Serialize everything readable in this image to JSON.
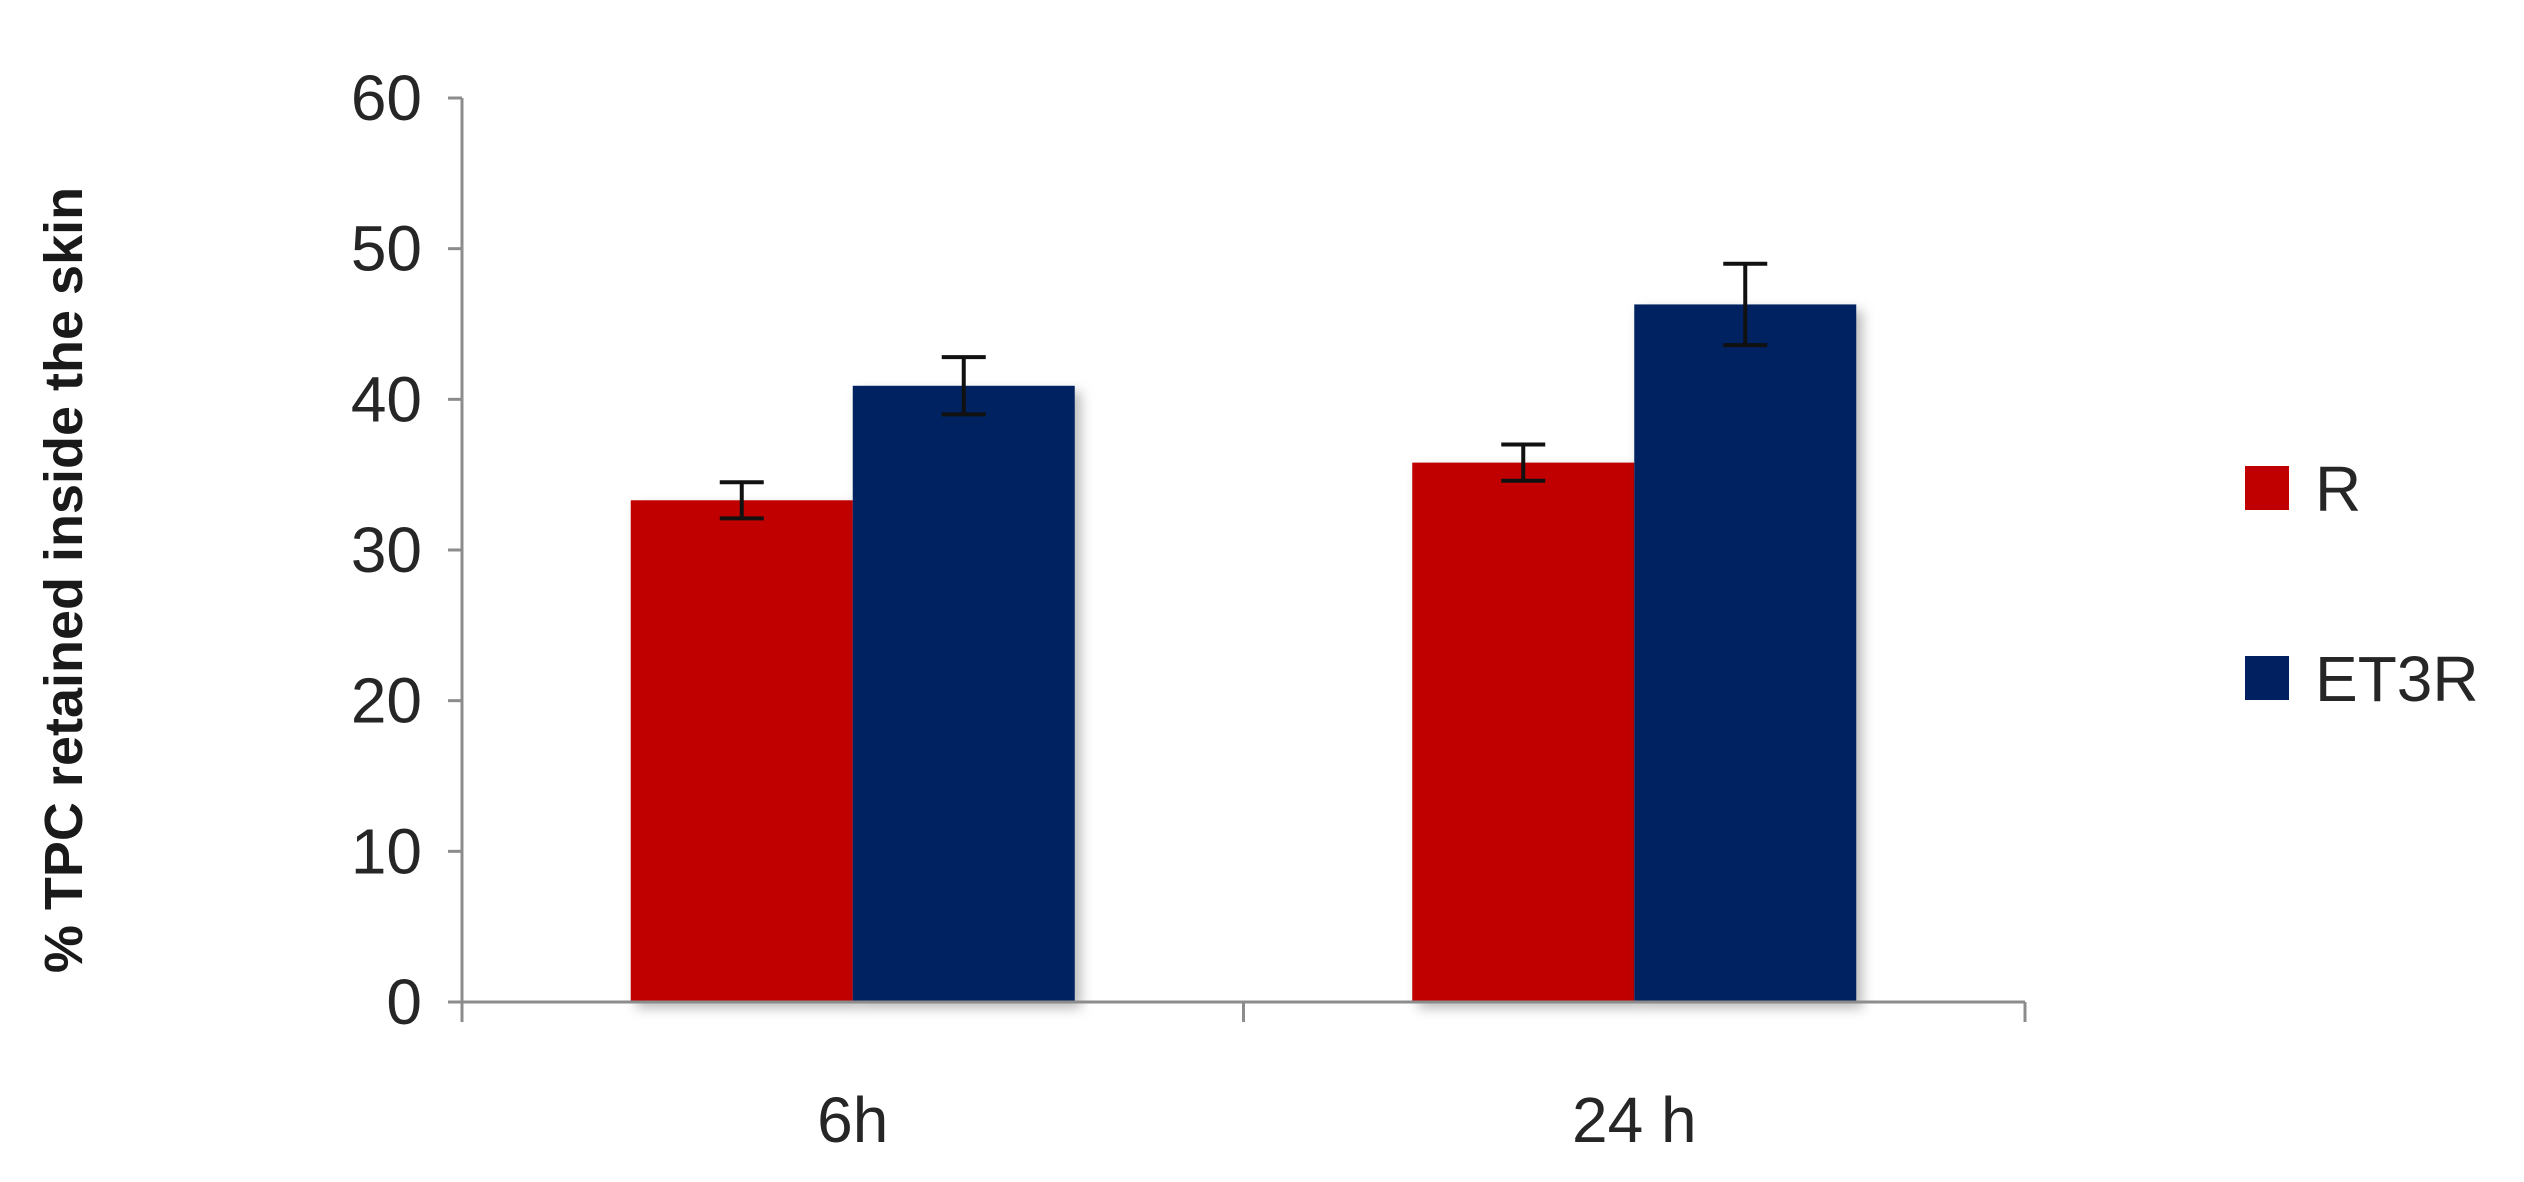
{
  "chart_data": {
    "type": "bar",
    "title": "",
    "xlabel": "",
    "ylabel": "% TPC retained inside the skin",
    "categories": [
      "6h",
      "24 h"
    ],
    "ylim": [
      0,
      60
    ],
    "yticks": [
      "0",
      "10",
      "20",
      "30",
      "40",
      "50",
      "60"
    ],
    "grid": false,
    "legend_position": "right",
    "series": [
      {
        "name": "R",
        "color": "#c00000",
        "values": [
          33.3,
          35.8
        ],
        "errors": [
          1.2,
          1.2
        ]
      },
      {
        "name": "ET3R",
        "color": "#002060",
        "values": [
          40.9,
          46.3
        ],
        "errors": [
          1.9,
          2.7
        ]
      }
    ]
  }
}
